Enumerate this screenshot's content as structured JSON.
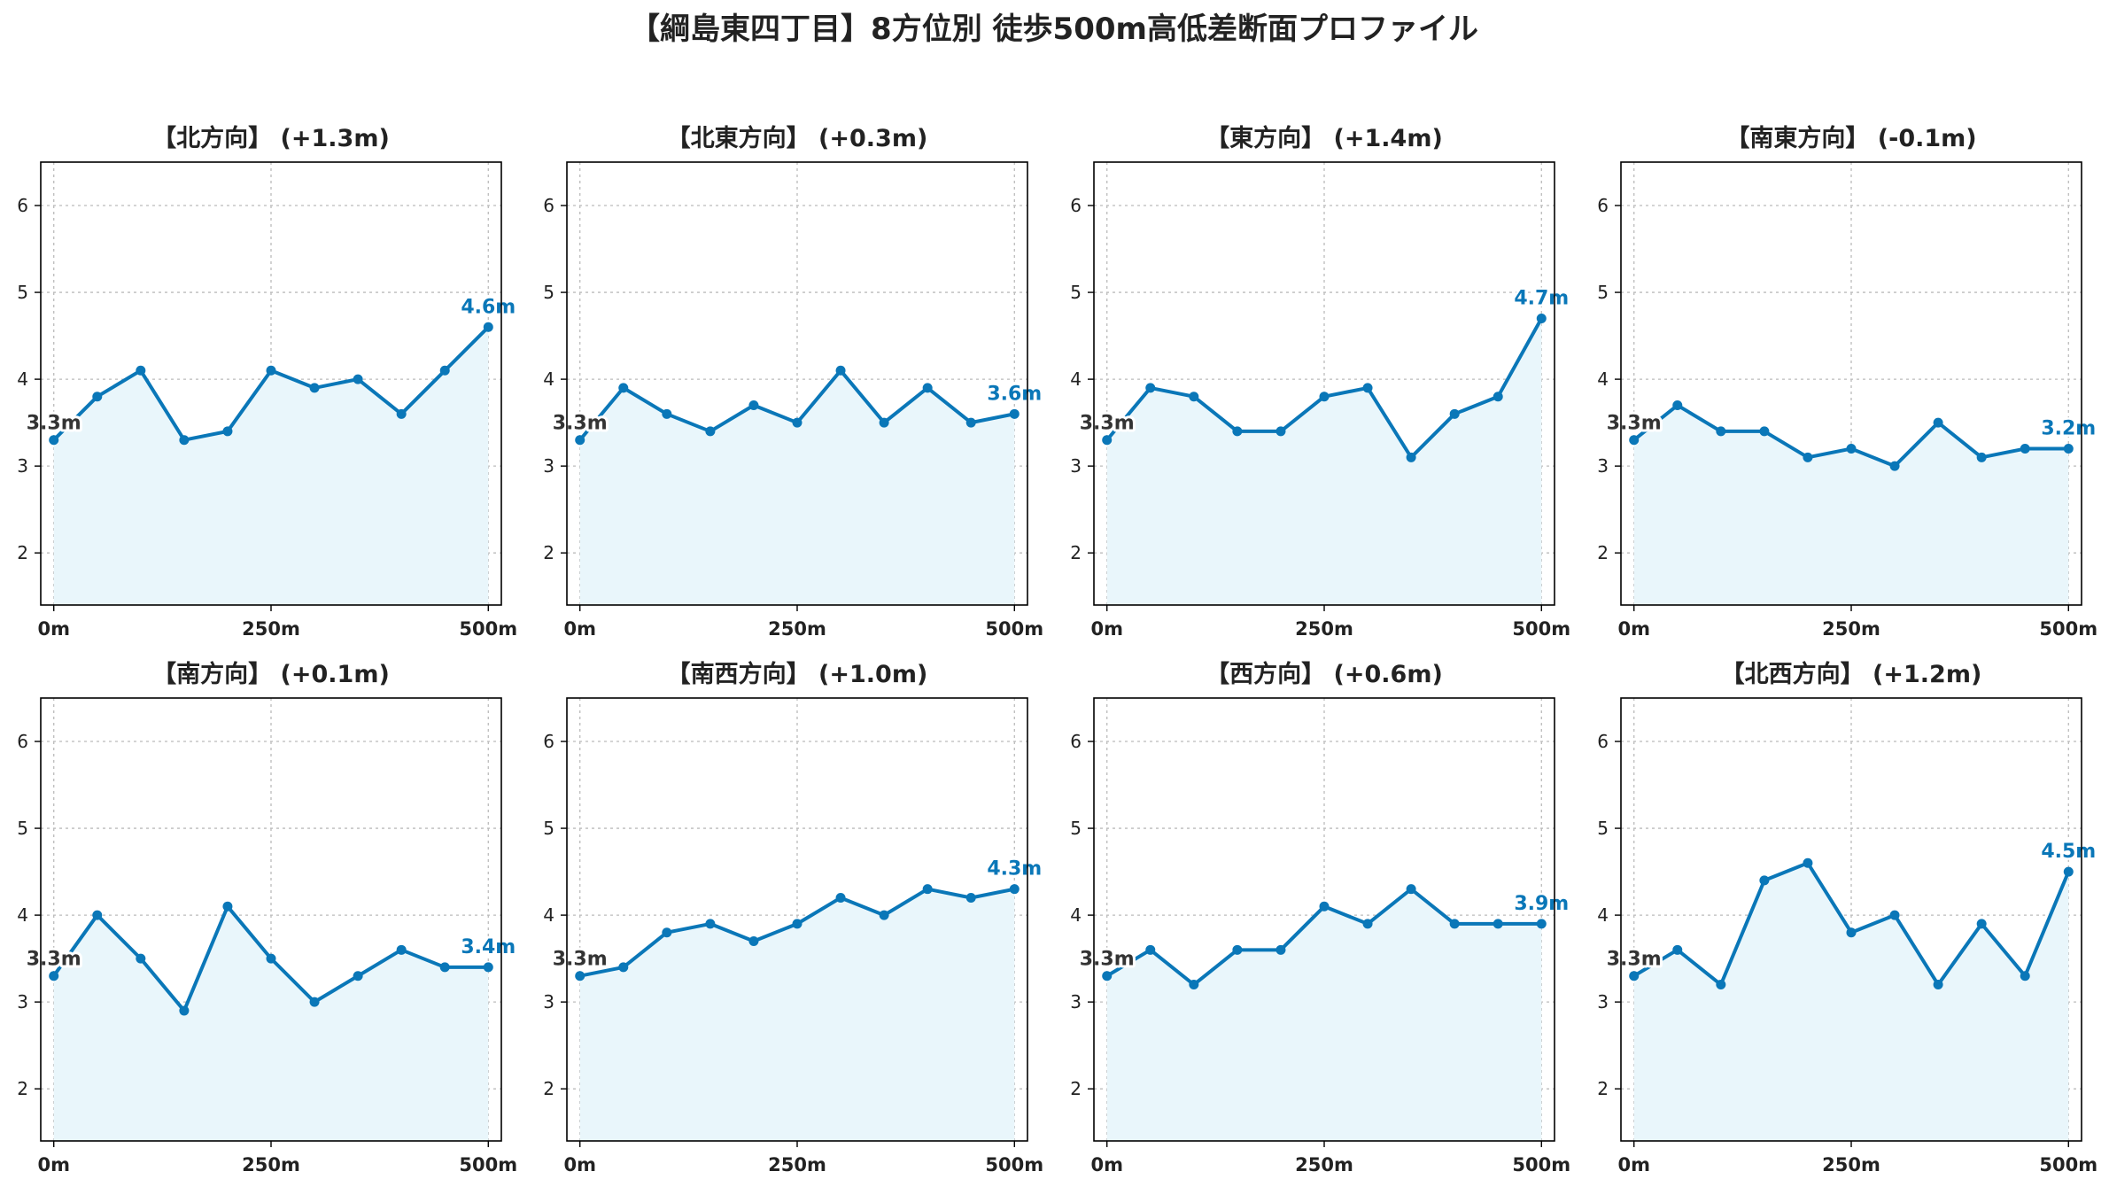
{
  "title": "【綱島東四丁目】8方位別 徒歩500m高低差断面プロファイル",
  "colors": {
    "line": "#0a77b8",
    "fill": "#e9f6fb",
    "start_label": "#333333"
  },
  "chart_data": [
    {
      "type": "area",
      "title": "【北方向】 (+1.3m)",
      "x": [
        0,
        50,
        100,
        150,
        200,
        250,
        300,
        350,
        400,
        450,
        500
      ],
      "y": [
        3.3,
        3.8,
        4.1,
        3.3,
        3.4,
        4.1,
        3.9,
        4.0,
        3.6,
        4.1,
        4.6
      ],
      "start_label": "3.3m",
      "end_label": "4.6m",
      "xticks": [
        "0m",
        "250m",
        "500m"
      ],
      "yticks": [
        2,
        3,
        4,
        5,
        6
      ],
      "xlim": [
        -15,
        515
      ],
      "ylim": [
        1.4,
        6.5
      ],
      "grid": true
    },
    {
      "type": "area",
      "title": "【北東方向】 (+0.3m)",
      "x": [
        0,
        50,
        100,
        150,
        200,
        250,
        300,
        350,
        400,
        450,
        500
      ],
      "y": [
        3.3,
        3.9,
        3.6,
        3.4,
        3.7,
        3.5,
        4.1,
        3.5,
        3.9,
        3.5,
        3.6
      ],
      "start_label": "3.3m",
      "end_label": "3.6m",
      "xticks": [
        "0m",
        "250m",
        "500m"
      ],
      "yticks": [
        2,
        3,
        4,
        5,
        6
      ],
      "xlim": [
        -15,
        515
      ],
      "ylim": [
        1.4,
        6.5
      ],
      "grid": true
    },
    {
      "type": "area",
      "title": "【東方向】 (+1.4m)",
      "x": [
        0,
        50,
        100,
        150,
        200,
        250,
        300,
        350,
        400,
        450,
        500
      ],
      "y": [
        3.3,
        3.9,
        3.8,
        3.4,
        3.4,
        3.8,
        3.9,
        3.1,
        3.6,
        3.8,
        4.7
      ],
      "start_label": "3.3m",
      "end_label": "4.7m",
      "xticks": [
        "0m",
        "250m",
        "500m"
      ],
      "yticks": [
        2,
        3,
        4,
        5,
        6
      ],
      "xlim": [
        -15,
        515
      ],
      "ylim": [
        1.4,
        6.5
      ],
      "grid": true
    },
    {
      "type": "area",
      "title": "【南東方向】 (-0.1m)",
      "x": [
        0,
        50,
        100,
        150,
        200,
        250,
        300,
        350,
        400,
        450,
        500
      ],
      "y": [
        3.3,
        3.7,
        3.4,
        3.4,
        3.1,
        3.2,
        3.0,
        3.5,
        3.1,
        3.2,
        3.2
      ],
      "start_label": "3.3m",
      "end_label": "3.2m",
      "xticks": [
        "0m",
        "250m",
        "500m"
      ],
      "yticks": [
        2,
        3,
        4,
        5,
        6
      ],
      "xlim": [
        -15,
        515
      ],
      "ylim": [
        1.4,
        6.5
      ],
      "grid": true
    },
    {
      "type": "area",
      "title": "【南方向】 (+0.1m)",
      "x": [
        0,
        50,
        100,
        150,
        200,
        250,
        300,
        350,
        400,
        450,
        500
      ],
      "y": [
        3.3,
        4.0,
        3.5,
        2.9,
        4.1,
        3.5,
        3.0,
        3.3,
        3.6,
        3.4,
        3.4
      ],
      "start_label": "3.3m",
      "end_label": "3.4m",
      "xticks": [
        "0m",
        "250m",
        "500m"
      ],
      "yticks": [
        2,
        3,
        4,
        5,
        6
      ],
      "xlim": [
        -15,
        515
      ],
      "ylim": [
        1.4,
        6.5
      ],
      "grid": true
    },
    {
      "type": "area",
      "title": "【南西方向】 (+1.0m)",
      "x": [
        0,
        50,
        100,
        150,
        200,
        250,
        300,
        350,
        400,
        450,
        500
      ],
      "y": [
        3.3,
        3.4,
        3.8,
        3.9,
        3.7,
        3.9,
        4.2,
        4.0,
        4.3,
        4.2,
        4.3
      ],
      "start_label": "3.3m",
      "end_label": "4.3m",
      "xticks": [
        "0m",
        "250m",
        "500m"
      ],
      "yticks": [
        2,
        3,
        4,
        5,
        6
      ],
      "xlim": [
        -15,
        515
      ],
      "ylim": [
        1.4,
        6.5
      ],
      "grid": true
    },
    {
      "type": "area",
      "title": "【西方向】 (+0.6m)",
      "x": [
        0,
        50,
        100,
        150,
        200,
        250,
        300,
        350,
        400,
        450,
        500
      ],
      "y": [
        3.3,
        3.6,
        3.2,
        3.6,
        3.6,
        4.1,
        3.9,
        4.3,
        3.9,
        3.9,
        3.9
      ],
      "start_label": "3.3m",
      "end_label": "3.9m",
      "xticks": [
        "0m",
        "250m",
        "500m"
      ],
      "yticks": [
        2,
        3,
        4,
        5,
        6
      ],
      "xlim": [
        -15,
        515
      ],
      "ylim": [
        1.4,
        6.5
      ],
      "grid": true
    },
    {
      "type": "area",
      "title": "【北西方向】 (+1.2m)",
      "x": [
        0,
        50,
        100,
        150,
        200,
        250,
        300,
        350,
        400,
        450,
        500
      ],
      "y": [
        3.3,
        3.6,
        3.2,
        4.4,
        4.6,
        3.8,
        4.0,
        3.2,
        3.9,
        3.3,
        4.5
      ],
      "start_label": "3.3m",
      "end_label": "4.5m",
      "xticks": [
        "0m",
        "250m",
        "500m"
      ],
      "yticks": [
        2,
        3,
        4,
        5,
        6
      ],
      "xlim": [
        -15,
        515
      ],
      "ylim": [
        1.4,
        6.5
      ],
      "grid": true
    }
  ]
}
